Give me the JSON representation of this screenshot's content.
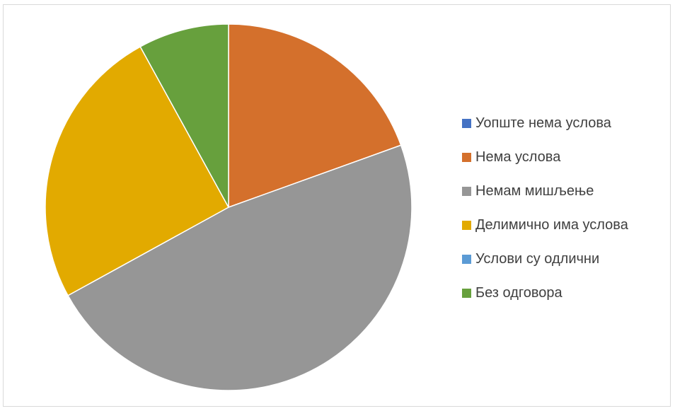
{
  "chart_data": {
    "type": "pie",
    "title": "",
    "legend_position": "right",
    "categories": [
      "Уопште нема услова",
      "Нема услова",
      "Немам мишљење",
      "Делимично има услова",
      "Услови су одлични",
      "Без одговора"
    ],
    "values": [
      0,
      19.5,
      47.5,
      25,
      0,
      8
    ],
    "unit": "percent",
    "colors": [
      "#4472C4",
      "#D4702C",
      "#969696",
      "#E2AA00",
      "#5B9BD5",
      "#67A03D"
    ]
  }
}
